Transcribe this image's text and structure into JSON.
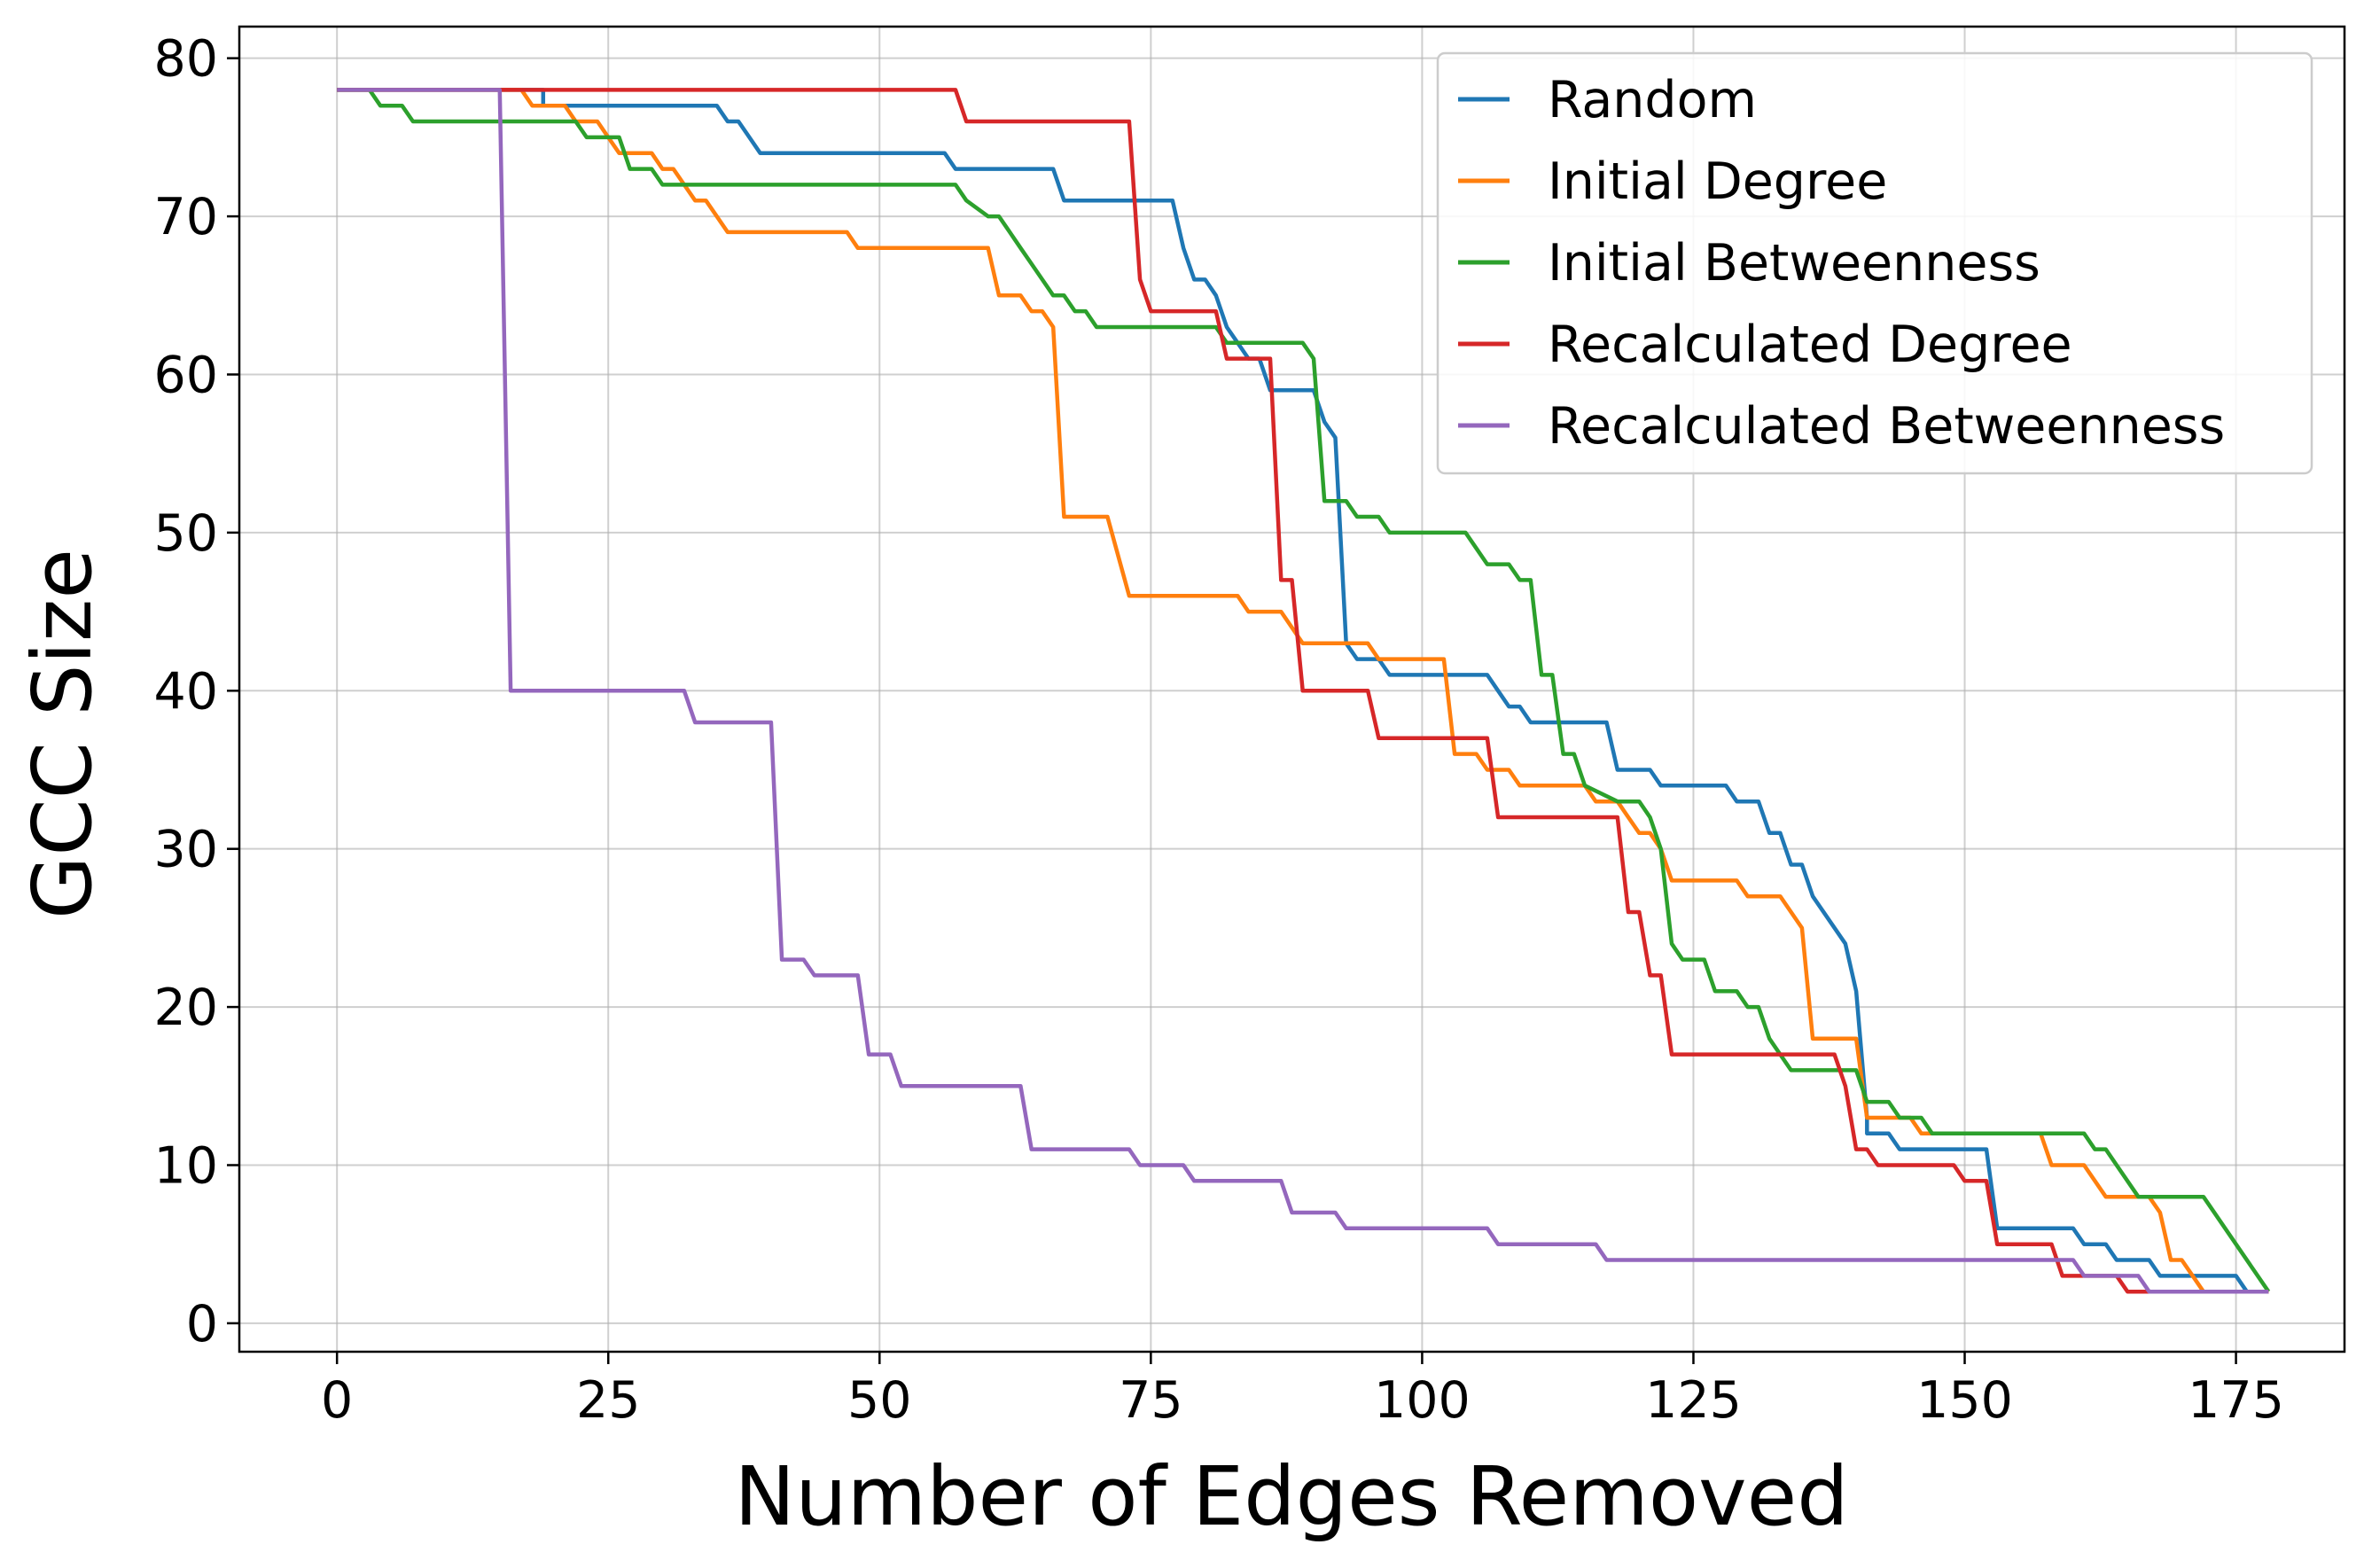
{
  "chart_data": {
    "type": "line",
    "title": "",
    "xlabel": "Number of Edges Removed",
    "ylabel": "GCC Size",
    "xlim": [
      -9,
      185
    ],
    "ylim": [
      -1.8,
      82
    ],
    "xticks": [
      0,
      25,
      50,
      75,
      100,
      125,
      150,
      175
    ],
    "yticks": [
      0,
      10,
      20,
      30,
      40,
      50,
      60,
      70,
      80
    ],
    "grid": true,
    "legend_position": "top-right",
    "series": [
      {
        "name": "Random",
        "color": "#1f77b4",
        "points": [
          [
            0,
            78
          ],
          [
            19,
            78
          ],
          [
            19,
            77
          ],
          [
            35,
            77
          ],
          [
            36,
            76
          ],
          [
            37,
            76
          ],
          [
            38,
            75
          ],
          [
            39,
            74
          ],
          [
            56,
            74
          ],
          [
            57,
            73
          ],
          [
            66,
            73
          ],
          [
            67,
            71
          ],
          [
            77,
            71
          ],
          [
            78,
            68
          ],
          [
            79,
            66
          ],
          [
            80,
            66
          ],
          [
            81,
            65
          ],
          [
            82,
            63
          ],
          [
            83,
            62
          ],
          [
            84,
            61
          ],
          [
            85,
            61
          ],
          [
            86,
            59
          ],
          [
            90,
            59
          ],
          [
            91,
            57
          ],
          [
            92,
            56
          ],
          [
            93,
            43
          ],
          [
            94,
            42
          ],
          [
            96,
            42
          ],
          [
            97,
            41
          ],
          [
            106,
            41
          ],
          [
            107,
            40
          ],
          [
            108,
            39
          ],
          [
            109,
            39
          ],
          [
            110,
            38
          ],
          [
            117,
            38
          ],
          [
            118,
            35
          ],
          [
            121,
            35
          ],
          [
            122,
            34
          ],
          [
            128,
            34
          ],
          [
            129,
            33
          ],
          [
            131,
            33
          ],
          [
            132,
            31
          ],
          [
            133,
            31
          ],
          [
            134,
            29
          ],
          [
            135,
            29
          ],
          [
            136,
            27
          ],
          [
            139,
            24
          ],
          [
            140,
            21
          ],
          [
            141,
            13
          ],
          [
            141,
            12
          ],
          [
            143,
            12
          ],
          [
            144,
            11
          ],
          [
            152,
            11
          ],
          [
            153,
            6
          ],
          [
            159,
            6
          ],
          [
            160,
            6
          ],
          [
            161,
            5
          ],
          [
            163,
            5
          ],
          [
            164,
            4
          ],
          [
            167,
            4
          ],
          [
            168,
            3
          ],
          [
            175,
            3
          ],
          [
            176,
            2
          ],
          [
            178,
            2
          ]
        ]
      },
      {
        "name": "Initial Degree",
        "color": "#ff7f0e",
        "points": [
          [
            0,
            78
          ],
          [
            17,
            78
          ],
          [
            18,
            77
          ],
          [
            21,
            77
          ],
          [
            22,
            76
          ],
          [
            24,
            76
          ],
          [
            25,
            75
          ],
          [
            26,
            74
          ],
          [
            29,
            74
          ],
          [
            30,
            73
          ],
          [
            31,
            73
          ],
          [
            32,
            72
          ],
          [
            33,
            71
          ],
          [
            34,
            71
          ],
          [
            36,
            69
          ],
          [
            47,
            69
          ],
          [
            48,
            68
          ],
          [
            60,
            68
          ],
          [
            61,
            65
          ],
          [
            63,
            65
          ],
          [
            64,
            64
          ],
          [
            65,
            64
          ],
          [
            66,
            63
          ],
          [
            67,
            51
          ],
          [
            71,
            51
          ],
          [
            73,
            46
          ],
          [
            83,
            46
          ],
          [
            84,
            45
          ],
          [
            87,
            45
          ],
          [
            89,
            43
          ],
          [
            95,
            43
          ],
          [
            96,
            42
          ],
          [
            102,
            42
          ],
          [
            103,
            36
          ],
          [
            105,
            36
          ],
          [
            106,
            35
          ],
          [
            108,
            35
          ],
          [
            109,
            34
          ],
          [
            115,
            34
          ],
          [
            116,
            33
          ],
          [
            118,
            33
          ],
          [
            119,
            32
          ],
          [
            120,
            31
          ],
          [
            121,
            31
          ],
          [
            122,
            30
          ],
          [
            123,
            28
          ],
          [
            129,
            28
          ],
          [
            130,
            27
          ],
          [
            133,
            27
          ],
          [
            135,
            25
          ],
          [
            136,
            18
          ],
          [
            140,
            18
          ],
          [
            141,
            13
          ],
          [
            145,
            13
          ],
          [
            146,
            12
          ],
          [
            152,
            12
          ],
          [
            153,
            12
          ],
          [
            157,
            12
          ],
          [
            158,
            10
          ],
          [
            161,
            10
          ],
          [
            163,
            8
          ],
          [
            167,
            8
          ],
          [
            168,
            7
          ],
          [
            169,
            4
          ],
          [
            170,
            4
          ],
          [
            172,
            2
          ],
          [
            178,
            2
          ]
        ]
      },
      {
        "name": "Initial Betweenness",
        "color": "#2ca02c",
        "points": [
          [
            0,
            78
          ],
          [
            3,
            78
          ],
          [
            4,
            77
          ],
          [
            6,
            77
          ],
          [
            7,
            76
          ],
          [
            22,
            76
          ],
          [
            23,
            75
          ],
          [
            26,
            75
          ],
          [
            27,
            73
          ],
          [
            29,
            73
          ],
          [
            30,
            72
          ],
          [
            57,
            72
          ],
          [
            58,
            71
          ],
          [
            60,
            70
          ],
          [
            61,
            70
          ],
          [
            62,
            69
          ],
          [
            63,
            68
          ],
          [
            64,
            67
          ],
          [
            65,
            66
          ],
          [
            66,
            65
          ],
          [
            67,
            65
          ],
          [
            68,
            64
          ],
          [
            69,
            64
          ],
          [
            70,
            63
          ],
          [
            80,
            63
          ],
          [
            81,
            63
          ],
          [
            82,
            62
          ],
          [
            89,
            62
          ],
          [
            90,
            61
          ],
          [
            91,
            52
          ],
          [
            93,
            52
          ],
          [
            94,
            51
          ],
          [
            96,
            51
          ],
          [
            97,
            50
          ],
          [
            104,
            50
          ],
          [
            105,
            49
          ],
          [
            106,
            48
          ],
          [
            108,
            48
          ],
          [
            109,
            47
          ],
          [
            110,
            47
          ],
          [
            111,
            41
          ],
          [
            112,
            41
          ],
          [
            113,
            36
          ],
          [
            114,
            36
          ],
          [
            115,
            34
          ],
          [
            118,
            33
          ],
          [
            120,
            33
          ],
          [
            121,
            32
          ],
          [
            122,
            30
          ],
          [
            123,
            24
          ],
          [
            124,
            23
          ],
          [
            126,
            23
          ],
          [
            127,
            21
          ],
          [
            129,
            21
          ],
          [
            130,
            20
          ],
          [
            131,
            20
          ],
          [
            132,
            18
          ],
          [
            133,
            17
          ],
          [
            134,
            16
          ],
          [
            140,
            16
          ],
          [
            141,
            14
          ],
          [
            143,
            14
          ],
          [
            144,
            13
          ],
          [
            146,
            13
          ],
          [
            147,
            12
          ],
          [
            161,
            12
          ],
          [
            162,
            11
          ],
          [
            163,
            11
          ],
          [
            164,
            10
          ],
          [
            166,
            8
          ],
          [
            172,
            8
          ],
          [
            178,
            2
          ]
        ]
      },
      {
        "name": "Recalculated Degree",
        "color": "#d62728",
        "points": [
          [
            0,
            78
          ],
          [
            57,
            78
          ],
          [
            58,
            76
          ],
          [
            73,
            76
          ],
          [
            74,
            66
          ],
          [
            75,
            64
          ],
          [
            81,
            64
          ],
          [
            82,
            61
          ],
          [
            86,
            61
          ],
          [
            87,
            47
          ],
          [
            88,
            47
          ],
          [
            89,
            40
          ],
          [
            95,
            40
          ],
          [
            96,
            37
          ],
          [
            103,
            37
          ],
          [
            104,
            37
          ],
          [
            106,
            37
          ],
          [
            107,
            32
          ],
          [
            118,
            32
          ],
          [
            119,
            26
          ],
          [
            120,
            26
          ],
          [
            121,
            22
          ],
          [
            122,
            22
          ],
          [
            123,
            17
          ],
          [
            138,
            17
          ],
          [
            139,
            15
          ],
          [
            140,
            11
          ],
          [
            141,
            11
          ],
          [
            142,
            10
          ],
          [
            148,
            10
          ],
          [
            149,
            10
          ],
          [
            150,
            9
          ],
          [
            152,
            9
          ],
          [
            153,
            5
          ],
          [
            157,
            5
          ],
          [
            158,
            5
          ],
          [
            159,
            3
          ],
          [
            161,
            3
          ],
          [
            163,
            3
          ],
          [
            164,
            3
          ],
          [
            165,
            2
          ],
          [
            178,
            2
          ]
        ]
      },
      {
        "name": "Recalculated Betweenness",
        "color": "#9467bd",
        "points": [
          [
            0,
            78
          ],
          [
            15,
            78
          ],
          [
            16,
            40
          ],
          [
            32,
            40
          ],
          [
            33,
            38
          ],
          [
            40,
            38
          ],
          [
            41,
            23
          ],
          [
            43,
            23
          ],
          [
            44,
            22
          ],
          [
            48,
            22
          ],
          [
            49,
            17
          ],
          [
            51,
            17
          ],
          [
            52,
            15
          ],
          [
            63,
            15
          ],
          [
            64,
            11
          ],
          [
            73,
            11
          ],
          [
            74,
            10
          ],
          [
            78,
            10
          ],
          [
            79,
            9
          ],
          [
            87,
            9
          ],
          [
            88,
            7
          ],
          [
            92,
            7
          ],
          [
            93,
            6
          ],
          [
            106,
            6
          ],
          [
            107,
            5
          ],
          [
            116,
            5
          ],
          [
            117,
            4
          ],
          [
            160,
            4
          ],
          [
            161,
            3
          ],
          [
            165,
            3
          ],
          [
            166,
            3
          ],
          [
            167,
            2
          ],
          [
            178,
            2
          ]
        ]
      }
    ]
  }
}
